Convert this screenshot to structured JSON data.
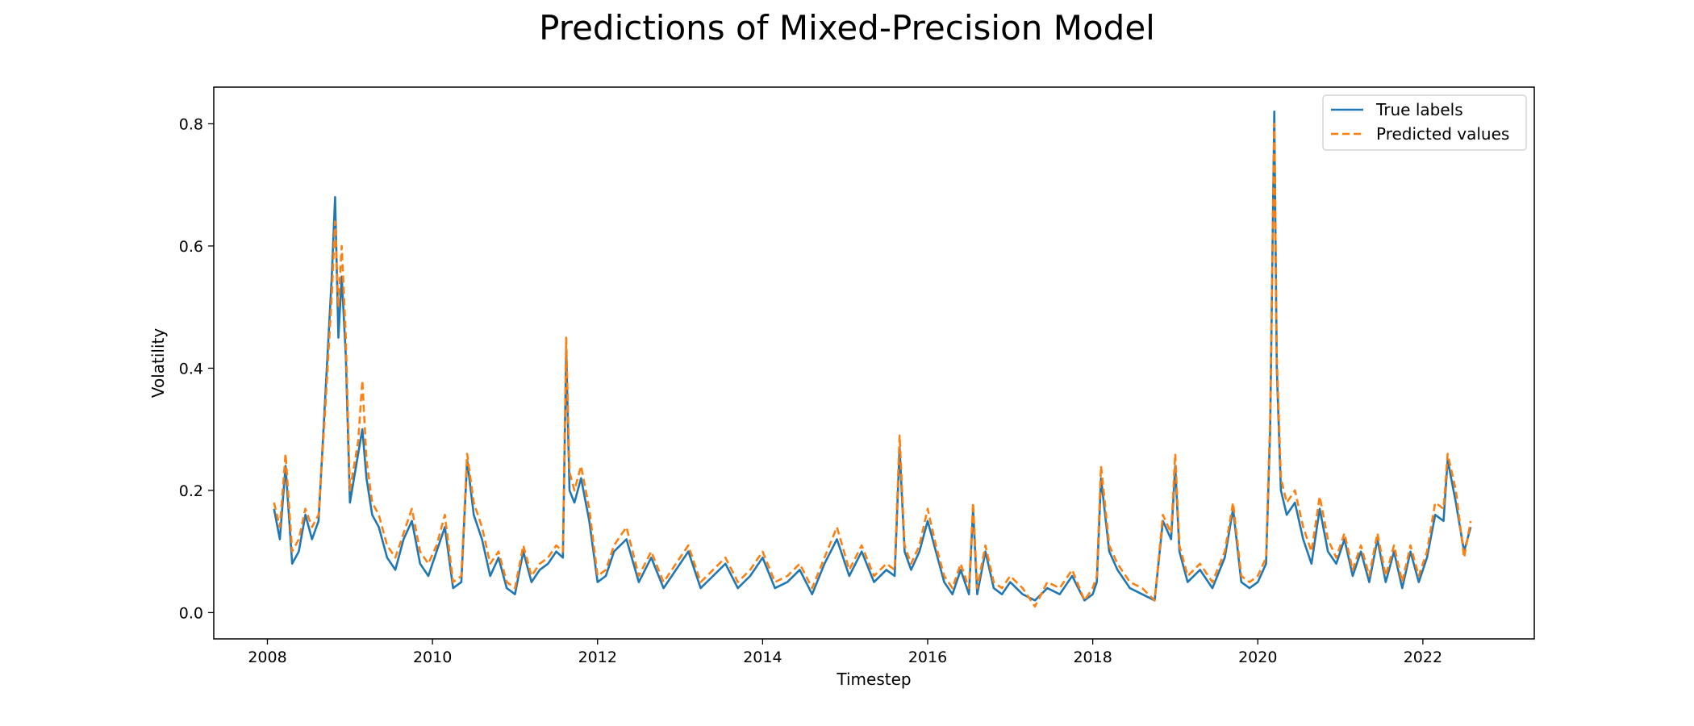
{
  "chart_data": {
    "type": "line",
    "title": "Predictions of Mixed-Precision Model",
    "xlabel": "Timestep",
    "ylabel": "Volatility",
    "xlim": [
      2007.35,
      2023.35
    ],
    "ylim": [
      -0.043,
      0.86
    ],
    "xticks": [
      2008,
      2010,
      2012,
      2014,
      2016,
      2018,
      2020,
      2022
    ],
    "xtick_labels": [
      "2008",
      "2010",
      "2012",
      "2014",
      "2016",
      "2018",
      "2020",
      "2022"
    ],
    "yticks": [
      0.0,
      0.2,
      0.4,
      0.6,
      0.8
    ],
    "ytick_labels": [
      "0.0",
      "0.2",
      "0.4",
      "0.6",
      "0.8"
    ],
    "grid": false,
    "legend_position": "top-right",
    "colors": {
      "true": "#1f77b4",
      "pred": "#ff7f0e"
    },
    "x": [
      2008.08,
      2008.15,
      2008.22,
      2008.3,
      2008.38,
      2008.46,
      2008.54,
      2008.62,
      2008.7,
      2008.78,
      2008.82,
      2008.86,
      2008.9,
      2008.95,
      2009.0,
      2009.05,
      2009.1,
      2009.15,
      2009.2,
      2009.27,
      2009.35,
      2009.45,
      2009.55,
      2009.65,
      2009.75,
      2009.85,
      2009.95,
      2010.05,
      2010.15,
      2010.25,
      2010.35,
      2010.42,
      2010.5,
      2010.6,
      2010.7,
      2010.8,
      2010.9,
      2011.0,
      2011.1,
      2011.2,
      2011.3,
      2011.4,
      2011.5,
      2011.58,
      2011.62,
      2011.66,
      2011.72,
      2011.8,
      2011.9,
      2012.0,
      2012.1,
      2012.2,
      2012.35,
      2012.5,
      2012.65,
      2012.8,
      2012.95,
      2013.1,
      2013.25,
      2013.4,
      2013.55,
      2013.7,
      2013.85,
      2014.0,
      2014.15,
      2014.3,
      2014.45,
      2014.6,
      2014.75,
      2014.9,
      2015.05,
      2015.2,
      2015.35,
      2015.5,
      2015.6,
      2015.66,
      2015.72,
      2015.8,
      2015.9,
      2016.0,
      2016.1,
      2016.2,
      2016.3,
      2016.4,
      2016.5,
      2016.55,
      2016.6,
      2016.7,
      2016.8,
      2016.9,
      2017.0,
      2017.15,
      2017.3,
      2017.45,
      2017.6,
      2017.75,
      2017.9,
      2018.0,
      2018.05,
      2018.1,
      2018.2,
      2018.3,
      2018.45,
      2018.6,
      2018.75,
      2018.85,
      2018.95,
      2019.0,
      2019.05,
      2019.15,
      2019.3,
      2019.45,
      2019.6,
      2019.7,
      2019.8,
      2019.9,
      2020.0,
      2020.1,
      2020.15,
      2020.2,
      2020.23,
      2020.28,
      2020.35,
      2020.45,
      2020.55,
      2020.65,
      2020.75,
      2020.85,
      2020.95,
      2021.05,
      2021.15,
      2021.25,
      2021.35,
      2021.45,
      2021.55,
      2021.65,
      2021.75,
      2021.85,
      2021.95,
      2022.05,
      2022.15,
      2022.25,
      2022.3,
      2022.4,
      2022.5,
      2022.58
    ],
    "series": [
      {
        "name": "True labels",
        "values": [
          0.17,
          0.12,
          0.24,
          0.08,
          0.1,
          0.16,
          0.12,
          0.15,
          0.35,
          0.55,
          0.68,
          0.45,
          0.55,
          0.42,
          0.18,
          0.22,
          0.26,
          0.3,
          0.22,
          0.16,
          0.14,
          0.09,
          0.07,
          0.12,
          0.15,
          0.08,
          0.06,
          0.1,
          0.14,
          0.04,
          0.05,
          0.25,
          0.16,
          0.12,
          0.06,
          0.09,
          0.04,
          0.03,
          0.1,
          0.05,
          0.07,
          0.08,
          0.1,
          0.09,
          0.43,
          0.2,
          0.18,
          0.22,
          0.15,
          0.05,
          0.06,
          0.1,
          0.12,
          0.05,
          0.09,
          0.04,
          0.07,
          0.1,
          0.04,
          0.06,
          0.08,
          0.04,
          0.06,
          0.09,
          0.04,
          0.05,
          0.07,
          0.03,
          0.08,
          0.12,
          0.06,
          0.1,
          0.05,
          0.07,
          0.06,
          0.27,
          0.1,
          0.07,
          0.1,
          0.15,
          0.1,
          0.05,
          0.03,
          0.07,
          0.03,
          0.17,
          0.03,
          0.1,
          0.04,
          0.03,
          0.05,
          0.03,
          0.02,
          0.04,
          0.03,
          0.06,
          0.02,
          0.03,
          0.05,
          0.22,
          0.1,
          0.07,
          0.04,
          0.03,
          0.02,
          0.15,
          0.12,
          0.24,
          0.1,
          0.05,
          0.07,
          0.04,
          0.09,
          0.17,
          0.05,
          0.04,
          0.05,
          0.08,
          0.3,
          0.82,
          0.4,
          0.2,
          0.16,
          0.18,
          0.12,
          0.08,
          0.17,
          0.1,
          0.08,
          0.12,
          0.06,
          0.1,
          0.05,
          0.12,
          0.05,
          0.1,
          0.04,
          0.1,
          0.05,
          0.09,
          0.16,
          0.15,
          0.25,
          0.18,
          0.1,
          0.14
        ]
      },
      {
        "name": "Predicted values",
        "values": [
          0.18,
          0.14,
          0.26,
          0.1,
          0.12,
          0.17,
          0.14,
          0.16,
          0.33,
          0.52,
          0.64,
          0.5,
          0.6,
          0.45,
          0.2,
          0.24,
          0.28,
          0.38,
          0.25,
          0.18,
          0.16,
          0.11,
          0.09,
          0.13,
          0.17,
          0.1,
          0.08,
          0.11,
          0.16,
          0.05,
          0.06,
          0.26,
          0.18,
          0.14,
          0.08,
          0.1,
          0.05,
          0.04,
          0.11,
          0.06,
          0.08,
          0.09,
          0.11,
          0.1,
          0.45,
          0.23,
          0.2,
          0.24,
          0.17,
          0.06,
          0.07,
          0.11,
          0.14,
          0.06,
          0.1,
          0.05,
          0.08,
          0.11,
          0.05,
          0.07,
          0.09,
          0.05,
          0.07,
          0.1,
          0.05,
          0.06,
          0.08,
          0.04,
          0.09,
          0.14,
          0.07,
          0.11,
          0.06,
          0.08,
          0.07,
          0.29,
          0.11,
          0.08,
          0.11,
          0.17,
          0.11,
          0.06,
          0.04,
          0.08,
          0.04,
          0.18,
          0.04,
          0.11,
          0.05,
          0.04,
          0.06,
          0.04,
          0.01,
          0.05,
          0.04,
          0.07,
          0.02,
          0.04,
          0.06,
          0.24,
          0.11,
          0.08,
          0.05,
          0.04,
          0.02,
          0.16,
          0.13,
          0.26,
          0.11,
          0.06,
          0.08,
          0.05,
          0.1,
          0.18,
          0.06,
          0.05,
          0.06,
          0.09,
          0.32,
          0.8,
          0.42,
          0.22,
          0.18,
          0.2,
          0.14,
          0.1,
          0.19,
          0.12,
          0.09,
          0.13,
          0.07,
          0.11,
          0.06,
          0.13,
          0.06,
          0.11,
          0.05,
          0.11,
          0.06,
          0.1,
          0.18,
          0.17,
          0.26,
          0.2,
          0.09,
          0.15
        ]
      }
    ]
  }
}
